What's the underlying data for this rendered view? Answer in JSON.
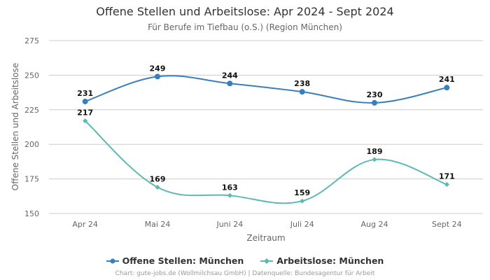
{
  "chart_data": {
    "type": "line",
    "title": "Offene Stellen und Arbeitslose: Apr 2024 - Sept 2024",
    "subtitle": "Für Berufe im Tiefbau (o.S.) (Region München)",
    "xlabel": "Zeitraum",
    "ylabel": "Offene Stellen und Arbeitslose",
    "categories": [
      "Apr 24",
      "Mai 24",
      "Juni 24",
      "Juli 24",
      "Aug 24",
      "Sept 24"
    ],
    "ylim": [
      150,
      275
    ],
    "yticks": [
      150,
      175,
      200,
      225,
      250,
      275
    ],
    "grid": true,
    "legend_position": "bottom",
    "series": [
      {
        "name": "Offene Stellen: München",
        "values": [
          231,
          249,
          244,
          238,
          230,
          241
        ],
        "color": "#3a7fbd",
        "marker": "circle"
      },
      {
        "name": "Arbeitslose: München",
        "values": [
          217,
          169,
          163,
          159,
          189,
          171
        ],
        "color": "#5cb8b2",
        "marker": "diamond"
      }
    ]
  },
  "footer": {
    "credit": "Chart: gute-jobs.de (Wollmilchsau GmbH) | Datenquelle: Bundesagentur für Arbeit"
  }
}
